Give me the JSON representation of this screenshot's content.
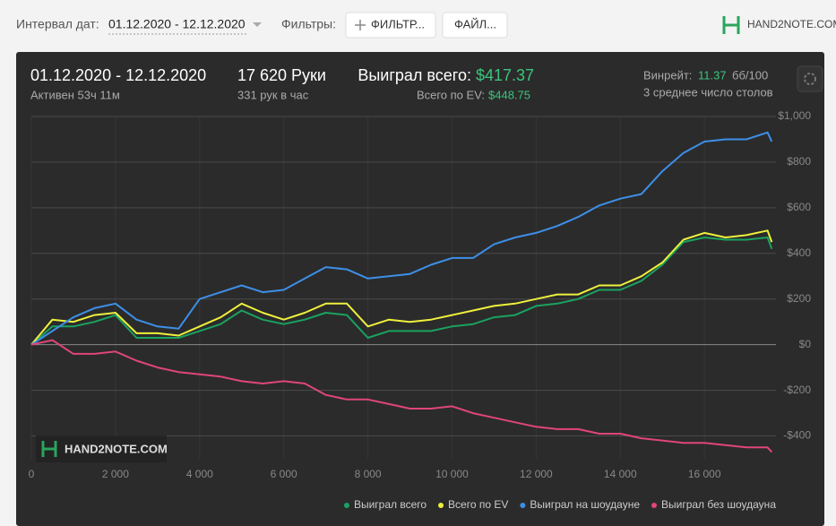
{
  "header": {
    "date_label": "Интервал дат:",
    "date_range": "01.12.2020 - 12.12.2020",
    "filters_label": "Фильтры:",
    "filter_button": "ФИЛЬТР...",
    "file_button": "ФАЙЛ...",
    "logo": "HAND2NOTE.COM"
  },
  "stats": {
    "range": "01.12.2020 - 12.12.2020",
    "active": "Активен 53ч 11м",
    "hands": "17 620 Руки",
    "hands_per_hour": "331 рук в час",
    "won_label": "Выиграл всего:",
    "won_value": "$417.37",
    "ev_label": "Всего по EV:",
    "ev_value": "$448.75",
    "winrate_label": "Винрейт:",
    "winrate_value": "11.37",
    "winrate_unit": "бб/100",
    "tables": "3 среднее число столов"
  },
  "chart_data": {
    "type": "line",
    "watermark": "HAND2NOTE.COM",
    "x": [
      0,
      500,
      1000,
      1500,
      2000,
      2500,
      3000,
      3500,
      4000,
      4500,
      5000,
      5500,
      6000,
      6500,
      7000,
      7500,
      8000,
      8500,
      9000,
      9500,
      10000,
      10500,
      11000,
      11500,
      12000,
      12500,
      13000,
      13500,
      14000,
      14500,
      15000,
      15500,
      16000,
      16500,
      17000,
      17500,
      17600
    ],
    "series": [
      {
        "name": "Выиграл всего",
        "color": "#1aa260",
        "values": [
          0,
          80,
          80,
          100,
          130,
          30,
          30,
          30,
          60,
          90,
          150,
          110,
          90,
          110,
          140,
          130,
          30,
          60,
          60,
          60,
          80,
          90,
          120,
          130,
          170,
          180,
          200,
          240,
          240,
          280,
          350,
          450,
          470,
          460,
          460,
          470,
          420
        ]
      },
      {
        "name": "Всего по EV",
        "color": "#eef03c",
        "values": [
          0,
          110,
          100,
          130,
          140,
          50,
          50,
          40,
          80,
          120,
          180,
          140,
          110,
          140,
          180,
          180,
          80,
          110,
          100,
          110,
          130,
          150,
          170,
          180,
          200,
          220,
          220,
          260,
          260,
          300,
          360,
          460,
          490,
          470,
          480,
          500,
          450
        ]
      },
      {
        "name": "Выиграл на шоудауне",
        "color": "#3d8fe8",
        "values": [
          0,
          60,
          120,
          160,
          180,
          110,
          80,
          70,
          200,
          230,
          260,
          230,
          240,
          290,
          340,
          330,
          290,
          300,
          310,
          350,
          380,
          380,
          440,
          470,
          490,
          520,
          560,
          610,
          640,
          660,
          760,
          840,
          890,
          900,
          900,
          930,
          890
        ]
      },
      {
        "name": "Выиграл без шоудауна",
        "color": "#e0457b",
        "values": [
          0,
          20,
          -40,
          -40,
          -30,
          -70,
          -100,
          -120,
          -130,
          -140,
          -160,
          -170,
          -160,
          -170,
          -220,
          -240,
          -240,
          -260,
          -280,
          -280,
          -270,
          -300,
          -320,
          -340,
          -360,
          -370,
          -370,
          -390,
          -390,
          -410,
          -420,
          -430,
          -430,
          -440,
          -450,
          -450,
          -470
        ]
      }
    ],
    "xlim": [
      0,
      17700
    ],
    "xticks": [
      0,
      {
        "value": 2000,
        "label": "2 000"
      },
      {
        "value": 4000,
        "label": "4 000"
      },
      {
        "value": 6000,
        "label": "6 000"
      },
      {
        "value": 8000,
        "label": "8 000"
      },
      {
        "value": 10000,
        "label": "10 000"
      },
      {
        "value": 12000,
        "label": "12 000"
      },
      {
        "value": 14000,
        "label": "14 000"
      },
      {
        "value": 16000,
        "label": "16 000"
      }
    ],
    "ylim": [
      -500,
      1000
    ],
    "yticks": [
      {
        "value": -400,
        "label": "-$400"
      },
      {
        "value": -200,
        "label": "-$200"
      },
      {
        "value": 0,
        "label": "$0"
      },
      {
        "value": 200,
        "label": "$200"
      },
      {
        "value": 400,
        "label": "$400"
      },
      {
        "value": 600,
        "label": "$600"
      },
      {
        "value": 800,
        "label": "$800"
      },
      {
        "value": 1000,
        "label": "$1,000"
      }
    ],
    "grid": true
  }
}
